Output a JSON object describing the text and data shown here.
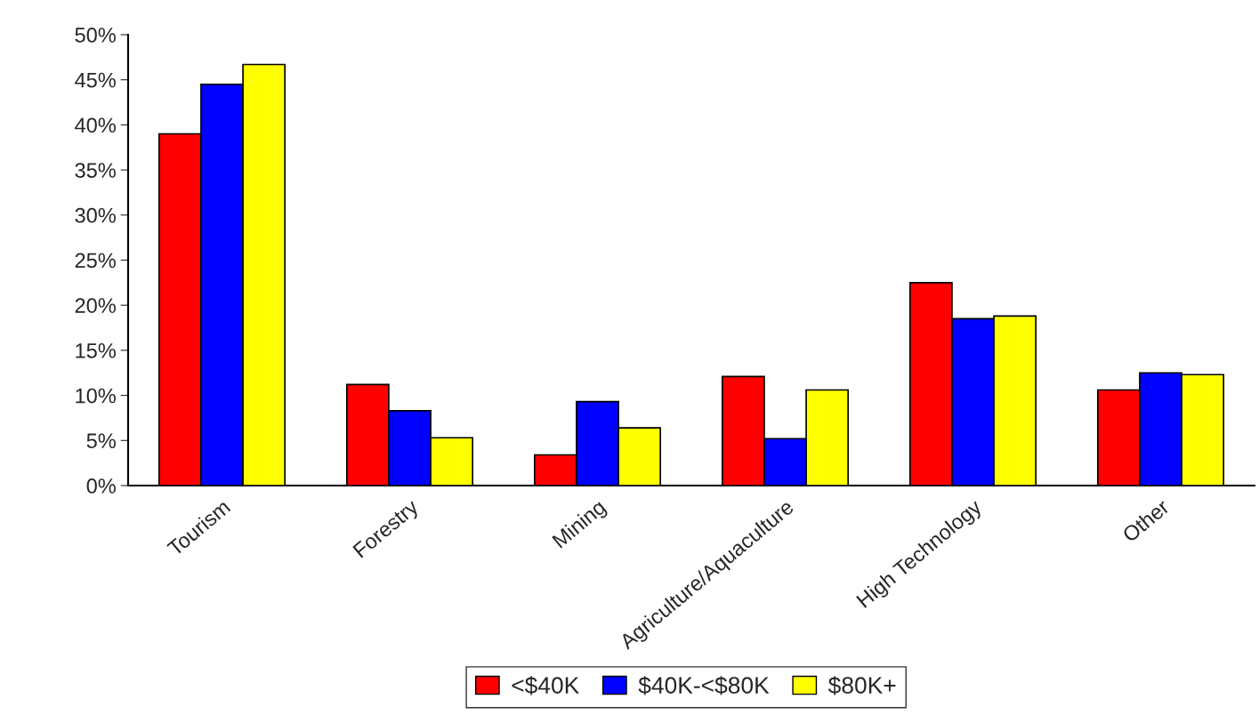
{
  "chart_data": {
    "type": "bar",
    "categories": [
      "Tourism",
      "Forestry",
      "Mining",
      "Agriculture/Aquaculture",
      "High Technology",
      "Other"
    ],
    "series": [
      {
        "name": "<$40K",
        "color": "#ff0000",
        "values": [
          39.0,
          11.2,
          3.4,
          12.1,
          22.5,
          10.6
        ]
      },
      {
        "name": "$40K-<$80K",
        "color": "#0000ff",
        "values": [
          44.5,
          8.3,
          9.3,
          5.2,
          18.5,
          12.5
        ]
      },
      {
        "name": "$80K+",
        "color": "#ffff00",
        "values": [
          46.7,
          5.3,
          6.4,
          10.6,
          18.8,
          12.3
        ]
      }
    ],
    "ylim": [
      0,
      50
    ],
    "yticks": [
      {
        "value": 0,
        "label": "0%"
      },
      {
        "value": 5,
        "label": "5%"
      },
      {
        "value": 10,
        "label": "10%"
      },
      {
        "value": 15,
        "label": "15%"
      },
      {
        "value": 20,
        "label": "20%"
      },
      {
        "value": 25,
        "label": "25%"
      },
      {
        "value": 30,
        "label": "30%"
      },
      {
        "value": 35,
        "label": "35%"
      },
      {
        "value": 40,
        "label": "40%"
      },
      {
        "value": 45,
        "label": "45%"
      },
      {
        "value": 50,
        "label": "50%"
      }
    ],
    "grid": false,
    "legend": "bottom"
  }
}
